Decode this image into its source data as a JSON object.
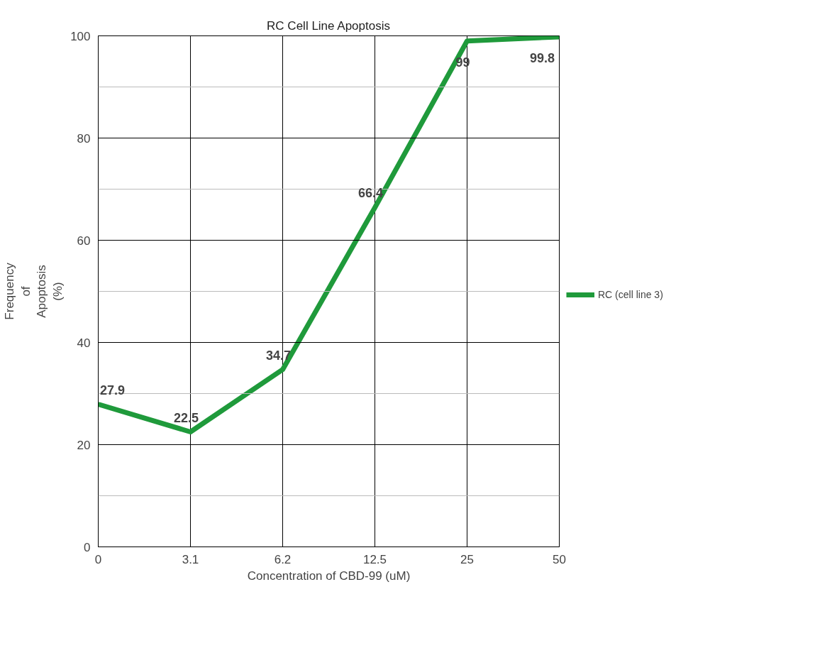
{
  "chart_data": {
    "type": "line",
    "title": "RC Cell Line Apoptosis",
    "xlabel": "Concentration of CBD-99 (uM)",
    "ylabel": "Frequency of Apoptosis (%)",
    "categories": [
      "0",
      "3.1",
      "6.2",
      "12.5",
      "25",
      "50"
    ],
    "series": [
      {
        "name": "RC (cell line 3)",
        "color": "#1f9a3b",
        "values": [
          27.9,
          22.5,
          34.7,
          66.4,
          99,
          99.8
        ]
      }
    ],
    "ylim": [
      0,
      100
    ],
    "yticks": [
      0,
      {
        "value": 10,
        "label": null
      },
      20,
      {
        "value": 30,
        "label": null
      },
      40,
      {
        "value": 50,
        "label": null
      },
      60,
      {
        "value": 70,
        "label": null
      },
      80,
      {
        "value": 90,
        "label": null
      },
      100
    ],
    "grid": true,
    "legend": "right",
    "data_labels": true,
    "marker": "none",
    "line_style": "solid"
  }
}
